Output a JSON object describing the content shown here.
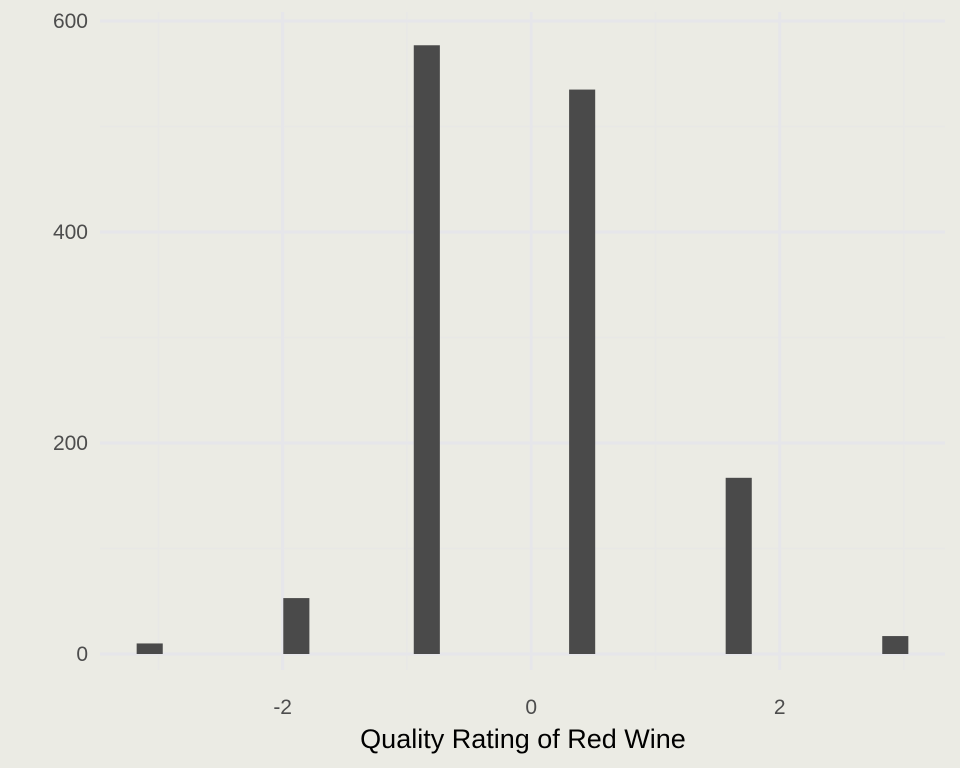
{
  "colors": {
    "background": "#ebebe4",
    "grid_major": "#e6e6ea",
    "grid_minor": "#e8e8e6",
    "bar_fill": "#4a4a4a",
    "tick_text": "#4d4d4d",
    "title_text": "#000000"
  },
  "chart_data": {
    "type": "bar",
    "xlabel": "Quality Rating of Red Wine",
    "ylabel": "",
    "title": "",
    "x": [
      -3.07,
      -1.89,
      -0.84,
      0.41,
      1.67,
      2.93
    ],
    "values": [
      10,
      53,
      577,
      535,
      167,
      17
    ],
    "bar_width": 0.21,
    "xlim": [
      -3.47,
      3.33
    ],
    "ylim": [
      0,
      600
    ],
    "x_ticks": [
      -2,
      0,
      2
    ],
    "x_tick_labels": [
      "-2",
      "0",
      "2"
    ],
    "y_ticks": [
      0,
      200,
      400,
      600
    ],
    "y_tick_labels": [
      "0",
      "200",
      "400",
      "600"
    ],
    "x_minor_ticks": [
      -3,
      -1,
      1,
      3
    ],
    "y_minor_ticks": [
      100,
      300,
      500
    ],
    "grid": true,
    "legend": "none"
  }
}
